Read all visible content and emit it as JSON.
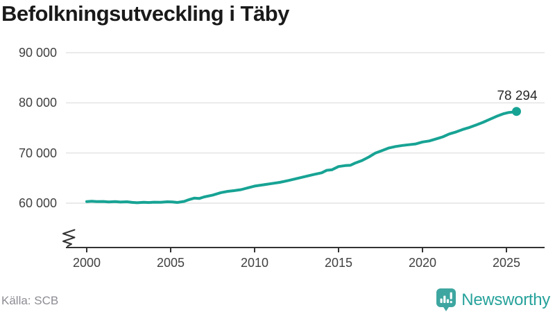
{
  "title": "Befolkningsutveckling i Täby",
  "source": "Källa: SCB",
  "branding": {
    "logo_text": "Newsworthy",
    "logo_icon": "bar-chart-speech-bubble-icon",
    "brand_color": "#3ea6a0"
  },
  "chart_data": {
    "type": "line",
    "title": "Befolkningsutveckling i Täby",
    "series_name": "Befolkning i Täby",
    "line_color": "#17a394",
    "grid_color": "#e4e4e4",
    "axis_color": "#333333",
    "grid_on": true,
    "axis_break": true,
    "xlabel": "",
    "ylabel": "",
    "xlim": [
      2000,
      2025.6
    ],
    "ylim": [
      60000,
      90000
    ],
    "y_ticks": [
      {
        "value": 90000,
        "label": "90 000"
      },
      {
        "value": 80000,
        "label": "80 000"
      },
      {
        "value": 70000,
        "label": "70 000"
      },
      {
        "value": 60000,
        "label": "60 000"
      }
    ],
    "x_ticks": [
      {
        "value": 2000,
        "label": "2000"
      },
      {
        "value": 2005,
        "label": "2005"
      },
      {
        "value": 2010,
        "label": "2010"
      },
      {
        "value": 2015,
        "label": "2015"
      },
      {
        "value": 2020,
        "label": "2020"
      },
      {
        "value": 2025,
        "label": "2025"
      }
    ],
    "end_label": "78 294",
    "end_value": 78294,
    "points": [
      [
        2000.0,
        60300
      ],
      [
        2000.3,
        60380
      ],
      [
        2000.6,
        60300
      ],
      [
        2001.0,
        60330
      ],
      [
        2001.3,
        60240
      ],
      [
        2001.7,
        60300
      ],
      [
        2002.0,
        60220
      ],
      [
        2002.4,
        60280
      ],
      [
        2002.7,
        60150
      ],
      [
        2003.0,
        60080
      ],
      [
        2003.4,
        60180
      ],
      [
        2003.7,
        60120
      ],
      [
        2004.0,
        60200
      ],
      [
        2004.4,
        60160
      ],
      [
        2004.8,
        60280
      ],
      [
        2005.1,
        60230
      ],
      [
        2005.4,
        60140
      ],
      [
        2005.8,
        60350
      ],
      [
        2006.1,
        60700
      ],
      [
        2006.4,
        61000
      ],
      [
        2006.7,
        60930
      ],
      [
        2007.0,
        61250
      ],
      [
        2007.5,
        61600
      ],
      [
        2008.0,
        62100
      ],
      [
        2008.4,
        62350
      ],
      [
        2008.8,
        62500
      ],
      [
        2009.2,
        62700
      ],
      [
        2009.6,
        63050
      ],
      [
        2010.0,
        63400
      ],
      [
        2010.5,
        63650
      ],
      [
        2011.0,
        63900
      ],
      [
        2011.5,
        64150
      ],
      [
        2012.0,
        64500
      ],
      [
        2012.5,
        64900
      ],
      [
        2013.0,
        65300
      ],
      [
        2013.5,
        65700
      ],
      [
        2014.0,
        66050
      ],
      [
        2014.3,
        66550
      ],
      [
        2014.6,
        66650
      ],
      [
        2015.0,
        67300
      ],
      [
        2015.4,
        67500
      ],
      [
        2015.7,
        67550
      ],
      [
        2016.0,
        68000
      ],
      [
        2016.4,
        68500
      ],
      [
        2016.8,
        69200
      ],
      [
        2017.2,
        70000
      ],
      [
        2017.6,
        70500
      ],
      [
        2018.0,
        71000
      ],
      [
        2018.4,
        71300
      ],
      [
        2018.8,
        71500
      ],
      [
        2019.2,
        71650
      ],
      [
        2019.6,
        71800
      ],
      [
        2020.0,
        72200
      ],
      [
        2020.4,
        72400
      ],
      [
        2020.8,
        72800
      ],
      [
        2021.2,
        73200
      ],
      [
        2021.6,
        73800
      ],
      [
        2022.0,
        74200
      ],
      [
        2022.4,
        74700
      ],
      [
        2022.8,
        75100
      ],
      [
        2023.2,
        75600
      ],
      [
        2023.6,
        76100
      ],
      [
        2024.0,
        76700
      ],
      [
        2024.4,
        77300
      ],
      [
        2024.8,
        77800
      ],
      [
        2025.1,
        78050
      ],
      [
        2025.35,
        78150
      ],
      [
        2025.5,
        78080
      ],
      [
        2025.6,
        78294
      ]
    ]
  }
}
